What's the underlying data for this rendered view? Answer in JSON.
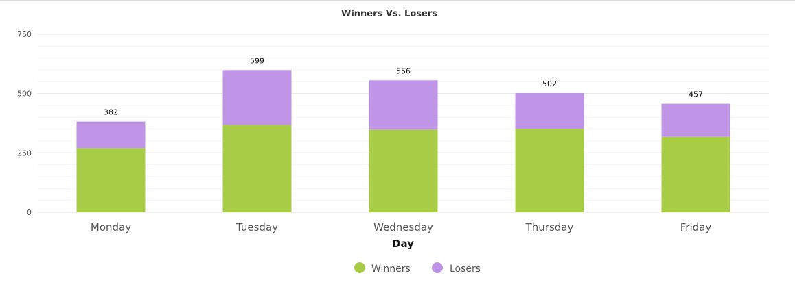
{
  "chart_data": {
    "type": "bar",
    "stacked": true,
    "title": "Winners Vs. Losers",
    "xlabel": "Day",
    "ylabel": "",
    "ylim": [
      0,
      750
    ],
    "yticks": [
      0,
      250,
      500,
      750
    ],
    "categories": [
      "Monday",
      "Tuesday",
      "Wednesday",
      "Thursday",
      "Friday"
    ],
    "series": [
      {
        "name": "Winners",
        "values": [
          270,
          368,
          348,
          352,
          318
        ],
        "color": "#a8cc45"
      },
      {
        "name": "Losers",
        "values": [
          112,
          231,
          208,
          150,
          139
        ],
        "color": "#bf94e6"
      }
    ],
    "totals": [
      382,
      599,
      556,
      502,
      457
    ],
    "grid": true,
    "legend_position": "bottom-center"
  }
}
